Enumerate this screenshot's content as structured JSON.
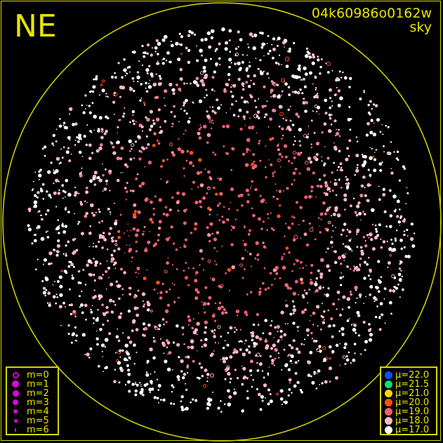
{
  "header": {
    "direction": "NE",
    "frame_id": "04k60986o0162w",
    "image_type": "sky"
  },
  "magnitude_legend": {
    "symbol_color": "#e000e0",
    "items": [
      {
        "label": "m=0",
        "hollow": true
      },
      {
        "label": "m=1"
      },
      {
        "label": "m=2"
      },
      {
        "label": "m=3"
      },
      {
        "label": "m=4"
      },
      {
        "label": "m=5"
      },
      {
        "label": "m=6"
      }
    ]
  },
  "surface_brightness_legend": {
    "items": [
      {
        "label": "μ=22.0",
        "color": "#1050ff"
      },
      {
        "label": "μ=21.5",
        "color": "#10e070"
      },
      {
        "label": "μ=21.0",
        "color": "#ffd800"
      },
      {
        "label": "μ=20.0",
        "color": "#ff5010"
      },
      {
        "label": "μ=19.0",
        "color": "#f06070"
      },
      {
        "label": "μ=18.0",
        "color": "#ffb8c8"
      },
      {
        "label": "μ=17.0",
        "color": "#ffffff"
      }
    ]
  },
  "colors": {
    "frame": "#d8d800",
    "background": "#000000"
  }
}
